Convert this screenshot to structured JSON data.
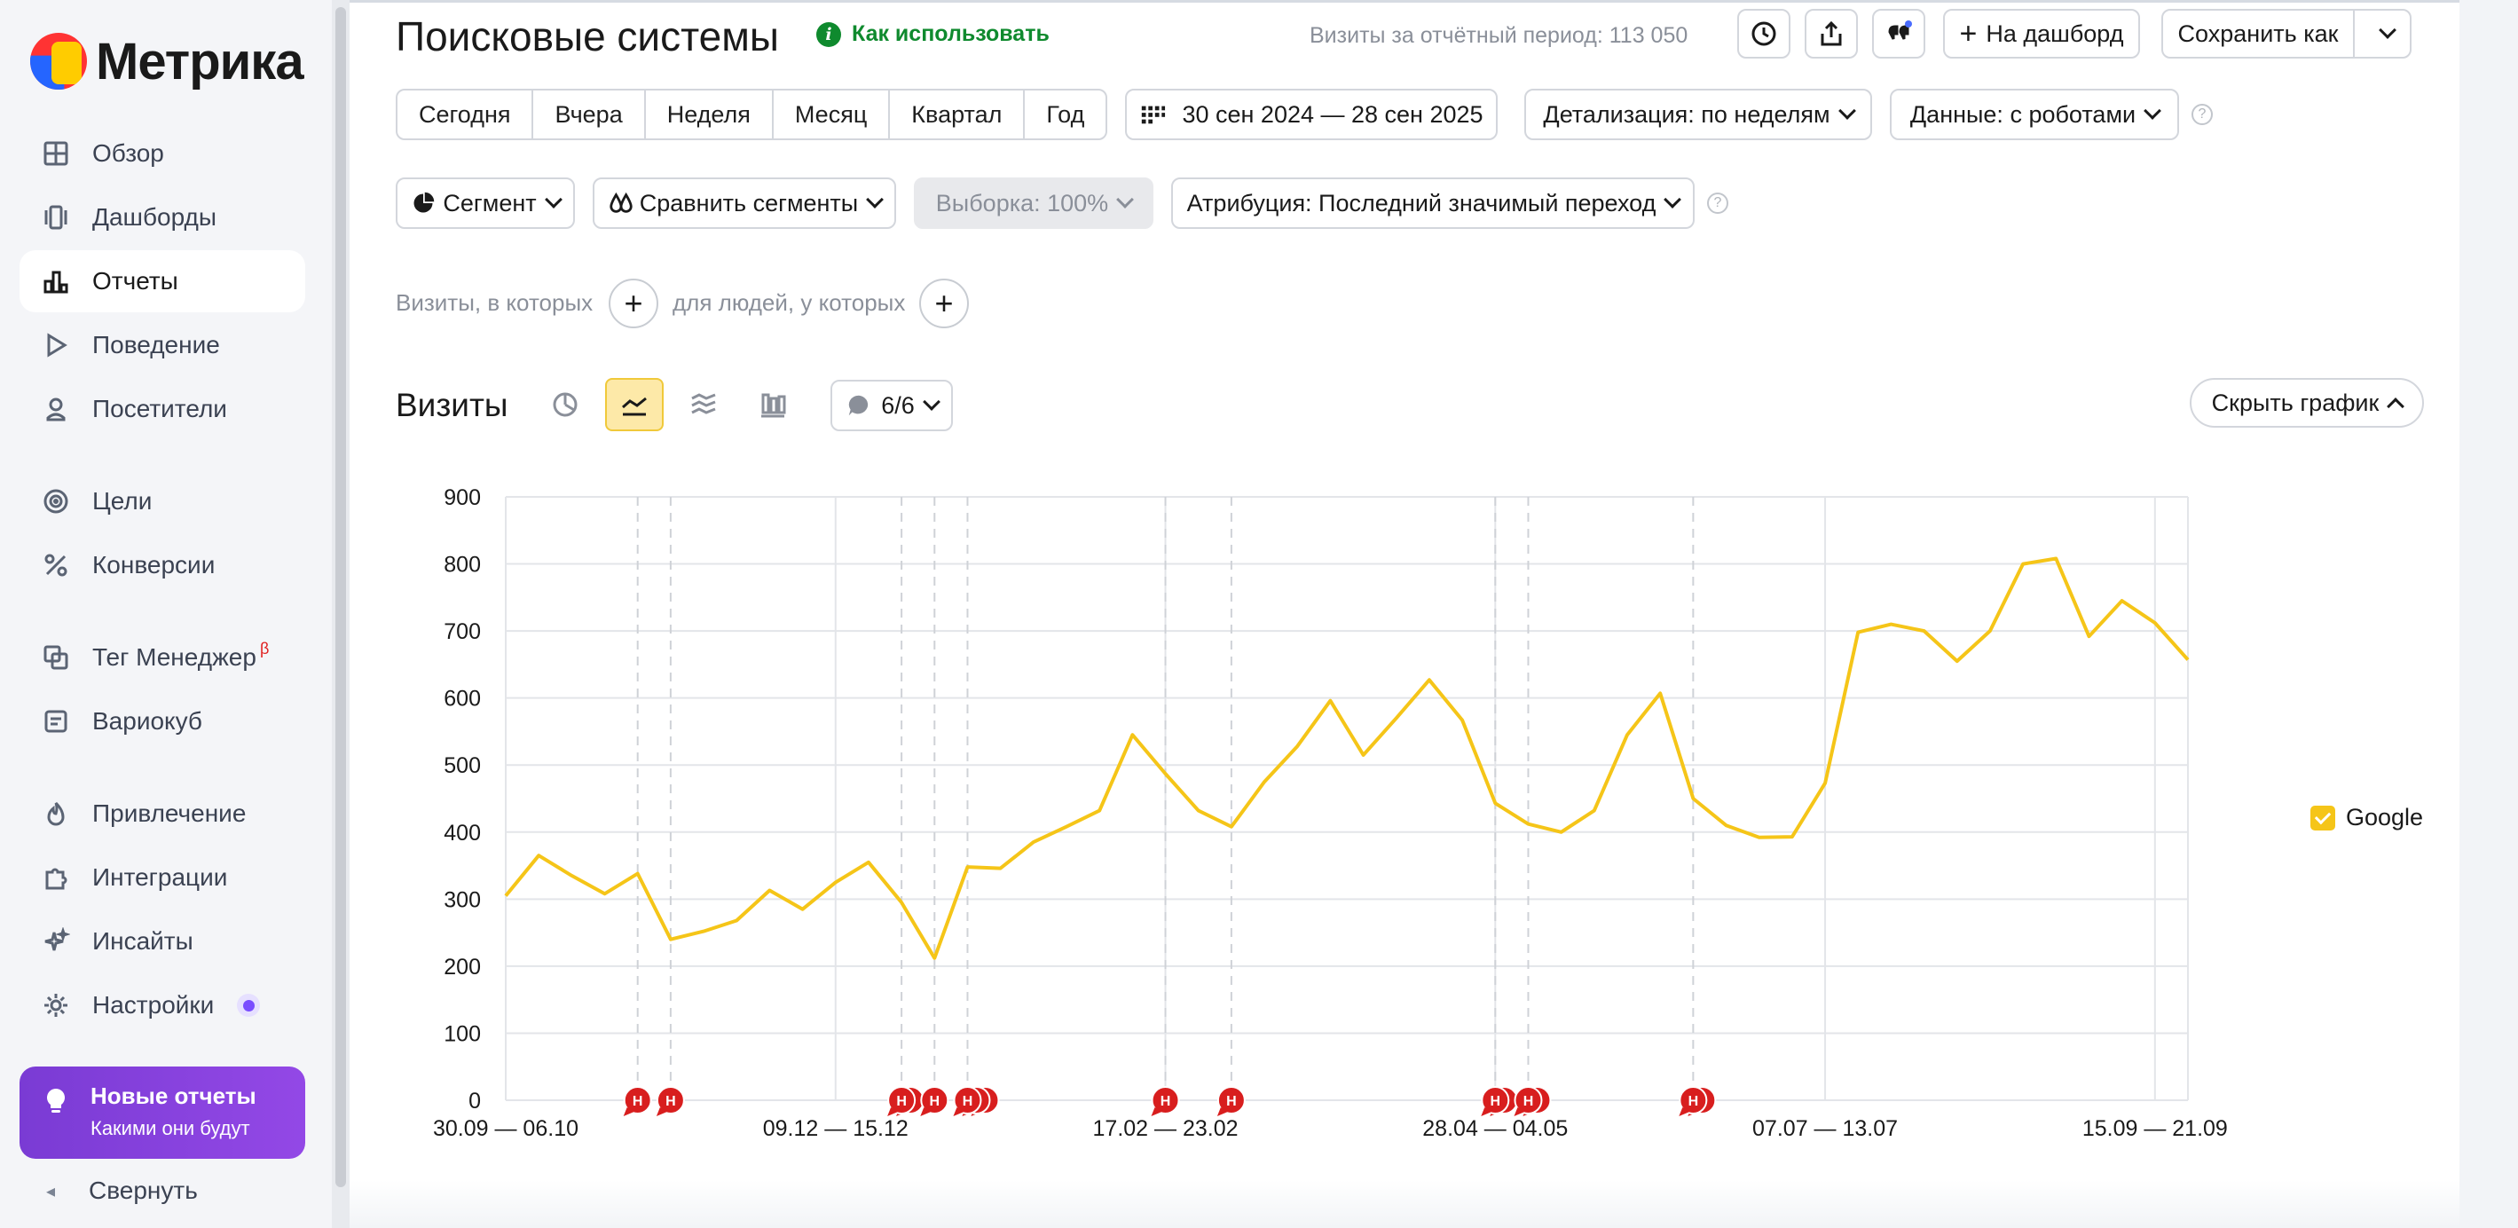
{
  "app": {
    "logo_text": "Метрика"
  },
  "sidebar": {
    "items": [
      {
        "label": "Обзор",
        "icon": "grid-icon"
      },
      {
        "label": "Дашборды",
        "icon": "dashboards-icon"
      },
      {
        "label": "Отчеты",
        "icon": "bar-chart-icon",
        "active": true
      },
      {
        "label": "Поведение",
        "icon": "play-icon"
      },
      {
        "label": "Посетители",
        "icon": "user-icon"
      },
      {
        "label": "Цели",
        "icon": "target-icon"
      },
      {
        "label": "Конверсии",
        "icon": "percent-icon"
      },
      {
        "label": "Тег Менеджер",
        "icon": "tag-manager-icon",
        "badge": "β"
      },
      {
        "label": "Вариокуб",
        "icon": "variocube-icon"
      },
      {
        "label": "Привлечение",
        "icon": "flame-icon"
      },
      {
        "label": "Интеграции",
        "icon": "puzzle-icon"
      },
      {
        "label": "Инсайты",
        "icon": "sparkle-icon"
      },
      {
        "label": "Настройки",
        "icon": "gear-icon"
      }
    ],
    "promo": {
      "title": "Новые отчеты",
      "subtitle": "Какими они будут"
    },
    "collapse_label": "Свернуть"
  },
  "header": {
    "title": "Поисковые системы",
    "howto": "Как использовать",
    "visits_total": "Визиты за отчётный период: 113 050",
    "to_dashboard": "На дашборд",
    "save_as": "Сохранить как"
  },
  "periods": [
    "Сегодня",
    "Вчера",
    "Неделя",
    "Месяц",
    "Квартал",
    "Год"
  ],
  "filters": {
    "date_range": "30 сен 2024 — 28 сен 2025",
    "detail": "Детализация: по неделям",
    "data": "Данные: с роботами",
    "segment": "Сегмент",
    "compare": "Сравнить сегменты",
    "sample": "Выборка: 100%",
    "attribution": "Атрибуция: Последний значимый переход"
  },
  "segment_row": {
    "visits_label": "Визиты, в которых",
    "people_label": "для людей, у которых"
  },
  "chart_header": {
    "title": "Визиты",
    "notes_count": "6/6",
    "hide_chart": "Скрыть график"
  },
  "chart_data": {
    "type": "line",
    "ylim": [
      0,
      900
    ],
    "yticks": [
      0,
      100,
      200,
      300,
      400,
      500,
      600,
      700,
      800,
      900
    ],
    "xtick_labels": [
      {
        "index": 0,
        "label": "30.09 — 06.10"
      },
      {
        "index": 10,
        "label": "09.12 — 15.12"
      },
      {
        "index": 20,
        "label": "17.02 — 23.02"
      },
      {
        "index": 30,
        "label": "28.04 — 04.05"
      },
      {
        "index": 40,
        "label": "07.07 — 13.07"
      },
      {
        "index": 50,
        "label": "15.09 — 21.09"
      }
    ],
    "series": [
      {
        "name": "Google",
        "color": "#f5c518",
        "values": [
          305,
          365,
          335,
          308,
          338,
          240,
          252,
          268,
          313,
          285,
          325,
          355,
          295,
          212,
          348,
          346,
          385,
          408,
          432,
          545,
          487,
          432,
          408,
          475,
          528,
          596,
          515,
          570,
          627,
          567,
          443,
          412,
          400,
          432,
          545,
          607,
          450,
          410,
          392,
          393,
          473,
          698,
          710,
          700,
          655,
          700,
          800,
          808,
          692,
          745,
          712,
          657
        ]
      }
    ],
    "note_columns": [
      4,
      5,
      12,
      13,
      14,
      20,
      22,
      30,
      31,
      36
    ],
    "note_markers": [
      {
        "index": 4,
        "stack": 1
      },
      {
        "index": 5,
        "stack": 1
      },
      {
        "index": 12,
        "stack": 2
      },
      {
        "index": 13,
        "stack": 1
      },
      {
        "index": 14,
        "stack": 3
      },
      {
        "index": 20,
        "stack": 1
      },
      {
        "index": 22,
        "stack": 1
      },
      {
        "index": 30,
        "stack": 2
      },
      {
        "index": 31,
        "stack": 2
      },
      {
        "index": 36,
        "stack": 2
      }
    ],
    "marker_label": "Н",
    "grid": true,
    "legend": "right"
  }
}
